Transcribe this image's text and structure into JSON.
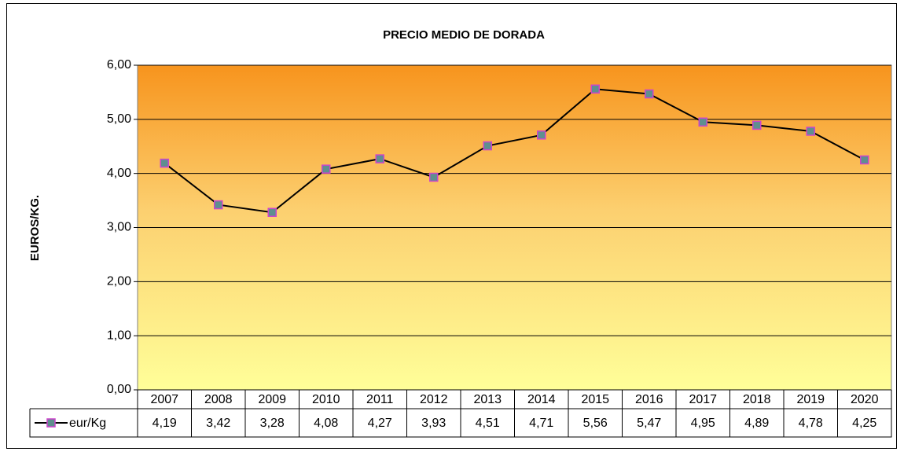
{
  "chart_data": {
    "type": "line",
    "title": "PRECIO MEDIO DE DORADA",
    "y_label": "EUROS/KG.",
    "categories": [
      "2007",
      "2008",
      "2009",
      "2010",
      "2011",
      "2012",
      "2013",
      "2014",
      "2015",
      "2016",
      "2017",
      "2018",
      "2019",
      "2020"
    ],
    "series": [
      {
        "name": "eur/Kg",
        "color": "#000000",
        "marker_color": "#5f8f8f",
        "marker_edge": "#cc44cc",
        "values": [
          4.19,
          3.42,
          3.28,
          4.08,
          4.27,
          3.93,
          4.51,
          4.71,
          5.56,
          5.47,
          4.95,
          4.89,
          4.78,
          4.25
        ],
        "value_labels": [
          "4,19",
          "3,42",
          "3,28",
          "4,08",
          "4,27",
          "3,93",
          "4,51",
          "4,71",
          "5,56",
          "5,47",
          "4,95",
          "4,89",
          "4,78",
          "4,25"
        ]
      }
    ],
    "ylim": [
      0,
      6
    ],
    "yticks": [
      {
        "value": 0,
        "label": "0,00"
      },
      {
        "value": 1,
        "label": "1,00"
      },
      {
        "value": 2,
        "label": "2,00"
      },
      {
        "value": 3,
        "label": "3,00"
      },
      {
        "value": 4,
        "label": "4,00"
      },
      {
        "value": 5,
        "label": "5,00"
      },
      {
        "value": 6,
        "label": "6,00"
      }
    ],
    "grid": true
  }
}
